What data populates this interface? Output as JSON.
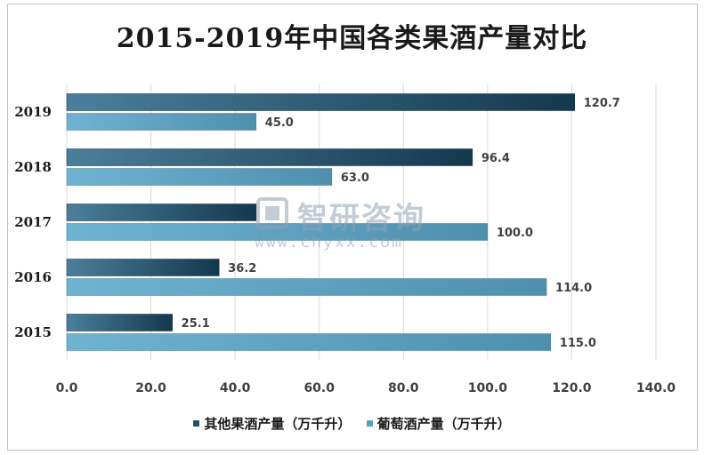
{
  "chart_data": {
    "type": "bar",
    "orientation": "horizontal",
    "title": "2015-2019年中国各类果酒产量对比",
    "categories": [
      "2019",
      "2018",
      "2017",
      "2016",
      "2015"
    ],
    "series": [
      {
        "name": "其他果酒产量（万千升）",
        "values": [
          120.7,
          96.4,
          45.0,
          36.2,
          25.1
        ],
        "color": "#245069"
      },
      {
        "name": "葡萄酒产量（万千升）",
        "values": [
          45.0,
          63.0,
          100.0,
          114.0,
          115.0
        ],
        "color": "#5b9fbe"
      }
    ],
    "data_labels": [
      [
        "120.7",
        "96.4",
        "",
        "36.2",
        "25.1"
      ],
      [
        "45.0",
        "63.0",
        "100.0",
        "114.0",
        "115.0"
      ]
    ],
    "xlim": [
      0,
      140
    ],
    "xticks": [
      "0.0",
      "20.0",
      "40.0",
      "60.0",
      "80.0",
      "100.0",
      "120.0",
      "140.0"
    ],
    "xlabel": "",
    "ylabel": "",
    "grid": "vertical",
    "legend": "bottom"
  },
  "watermark": {
    "text": "智研咨询",
    "url": "www.chyxx.com"
  }
}
